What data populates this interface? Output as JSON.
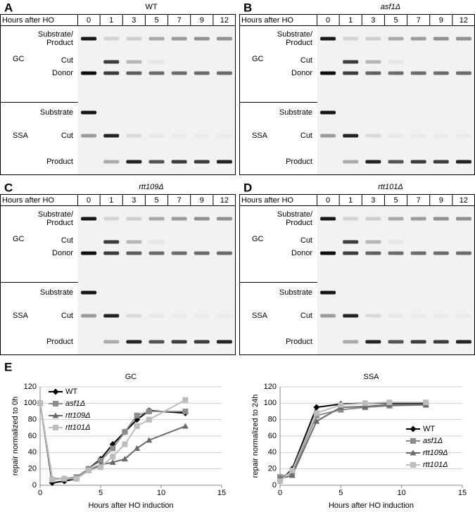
{
  "panels": [
    {
      "letter": "A",
      "title": "WT",
      "header": "Hours after HO",
      "hours": [
        "0",
        "1",
        "3",
        "5",
        "7",
        "9",
        "12"
      ],
      "gc": {
        "name": "GC",
        "labels": [
          "Substrate/",
          "Product",
          "Cut",
          "Donor"
        ]
      },
      "ssa": {
        "name": "SSA",
        "labels": [
          "Substrate",
          "Cut",
          "Product"
        ]
      }
    },
    {
      "letter": "B",
      "title": "asf1Δ",
      "header": "Hours after HO",
      "hours": [
        "0",
        "1",
        "3",
        "5",
        "7",
        "9",
        "12"
      ],
      "gc": {
        "name": "GC",
        "labels": [
          "Substrate/",
          "Product",
          "Cut",
          "Donor"
        ]
      },
      "ssa": {
        "name": "SSA",
        "labels": [
          "Substrate",
          "Cut",
          "Product"
        ]
      }
    },
    {
      "letter": "C",
      "title": "rtt109Δ",
      "header": "Hours after HO",
      "hours": [
        "0",
        "1",
        "3",
        "5",
        "7",
        "9",
        "12"
      ],
      "gc": {
        "name": "GC",
        "labels": [
          "Substrate/",
          "Product",
          "Cut",
          "Donor"
        ]
      },
      "ssa": {
        "name": "SSA",
        "labels": [
          "Substrate",
          "Cut",
          "Product"
        ]
      }
    },
    {
      "letter": "D",
      "title": "rtt101Δ",
      "header": "Hours after HO",
      "hours": [
        "0",
        "1",
        "3",
        "5",
        "7",
        "9",
        "12"
      ],
      "gc": {
        "name": "GC",
        "labels": [
          "Substrate/",
          "Product",
          "Cut",
          "Donor"
        ]
      },
      "ssa": {
        "name": "SSA",
        "labels": [
          "Substrate",
          "Cut",
          "Product"
        ]
      }
    }
  ],
  "panel_e_letter": "E",
  "chart_data": [
    {
      "type": "line",
      "title": "GC",
      "x_label": "Hours after HO induction",
      "y_label": "repair normalized to 0h",
      "x": [
        0,
        1,
        2,
        3,
        4,
        5,
        6,
        7,
        8,
        9,
        12
      ],
      "xlim": [
        0,
        15
      ],
      "xticks": [
        0,
        5,
        10,
        15
      ],
      "ylim": [
        0,
        120
      ],
      "yticks": [
        0,
        20,
        40,
        60,
        80,
        100,
        120
      ],
      "grid": true,
      "legend": "top-left",
      "series": [
        {
          "name": "WT",
          "color": "#000000",
          "marker": "diamond",
          "values": [
            100,
            3,
            5,
            8,
            20,
            32,
            50,
            65,
            80,
            91,
            88
          ]
        },
        {
          "name": "asf1Δ",
          "color": "#8c8c8c",
          "marker": "square",
          "values": [
            100,
            7,
            8,
            10,
            20,
            30,
            45,
            65,
            85,
            90,
            90
          ]
        },
        {
          "name": "rtt109Δ",
          "color": "#6a6a6a",
          "marker": "triangle",
          "values": [
            100,
            8,
            8,
            8,
            18,
            25,
            28,
            32,
            45,
            55,
            72
          ]
        },
        {
          "name": "rtt101Δ",
          "color": "#bcbcbc",
          "marker": "square",
          "values": [
            100,
            7,
            8,
            8,
            18,
            22,
            35,
            50,
            72,
            80,
            104
          ]
        }
      ]
    },
    {
      "type": "line",
      "title": "SSA",
      "x_label": "Hours after HO induction",
      "y_label": "repair normalized to 24h",
      "x": [
        0,
        1,
        3,
        5,
        7,
        9,
        12
      ],
      "xlim": [
        0,
        15
      ],
      "xticks": [
        0,
        5,
        10,
        15
      ],
      "ylim": [
        0,
        120
      ],
      "yticks": [
        0,
        20,
        40,
        60,
        80,
        100,
        120
      ],
      "grid": true,
      "legend": "bottom-right",
      "series": [
        {
          "name": "WT",
          "color": "#000000",
          "marker": "diamond",
          "values": [
            5,
            20,
            95,
            99,
            100,
            100,
            100
          ]
        },
        {
          "name": "asf1Δ",
          "color": "#8c8c8c",
          "marker": "square",
          "values": [
            10,
            15,
            85,
            92,
            95,
            97,
            98
          ]
        },
        {
          "name": "rtt109Δ",
          "color": "#6a6a6a",
          "marker": "triangle",
          "values": [
            8,
            12,
            78,
            95,
            96,
            98,
            98
          ]
        },
        {
          "name": "rtt101Δ",
          "color": "#bcbcbc",
          "marker": "square",
          "values": [
            5,
            18,
            88,
            98,
            100,
            101,
            101
          ]
        }
      ]
    }
  ]
}
